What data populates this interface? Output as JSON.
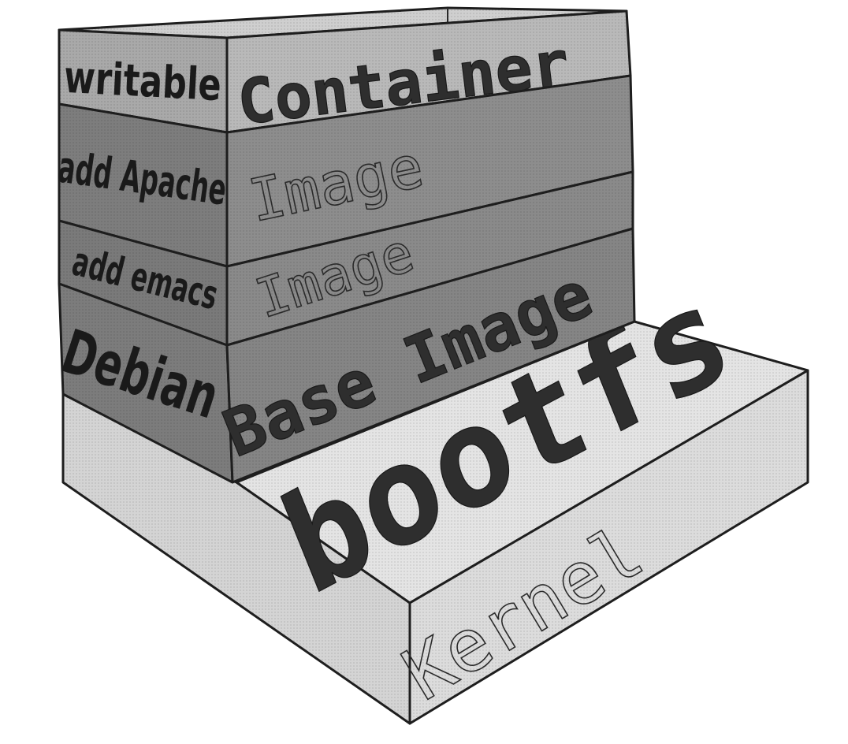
{
  "diagram": {
    "layers": [
      {
        "left_label": "writable",
        "front_label": "Container"
      },
      {
        "left_label": "add Apache",
        "front_label": "Image"
      },
      {
        "left_label": "add emacs",
        "front_label": "Image"
      },
      {
        "left_label": "Debian",
        "front_label": "Base Image"
      }
    ],
    "base": {
      "top_label": "bootfs",
      "front_label": "Kernel"
    }
  },
  "colors": {
    "container_face": "#b9b9b9",
    "image_face": "#8d8d8d",
    "base_image_face": "#858585",
    "left_face": "#7c7c7c",
    "kernel_top": "#e4e4e4",
    "kernel_side": "#d7d7d7",
    "outline": "#1e1e1e"
  }
}
